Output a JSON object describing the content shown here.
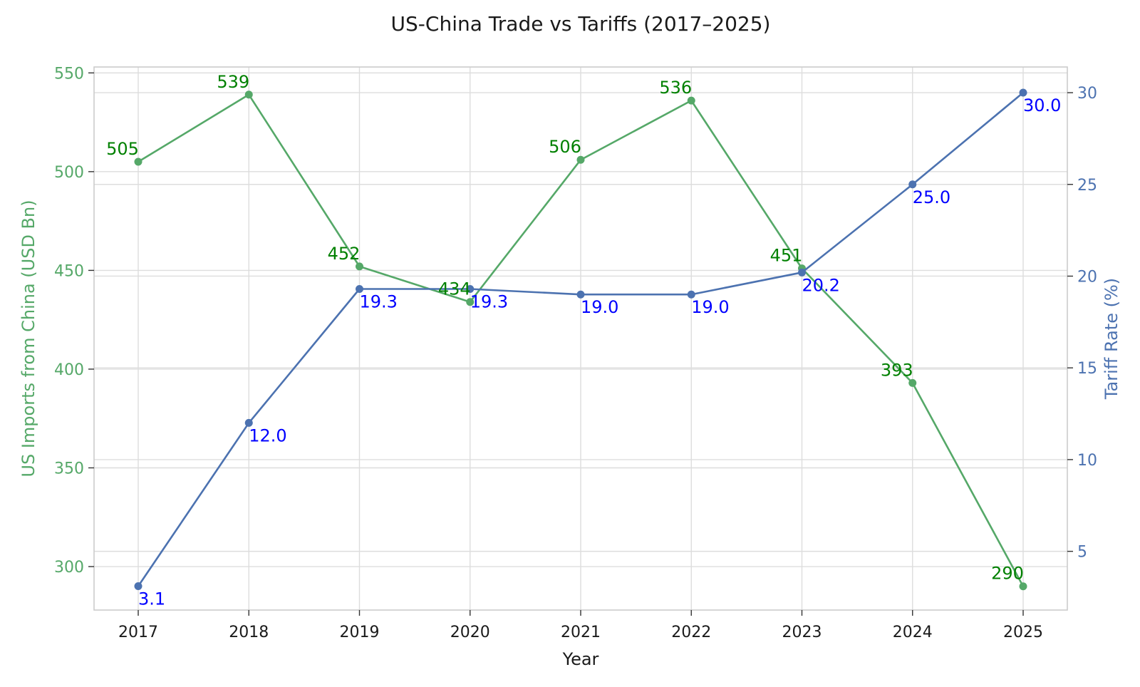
{
  "chart_data": {
    "type": "line",
    "title": "US-China Trade vs Tariffs (2017–2025)",
    "xlabel": "Year",
    "x": [
      "2017",
      "2018",
      "2019",
      "2020",
      "2021",
      "2022",
      "2023",
      "2024",
      "2025"
    ],
    "y_left": {
      "label": "US Imports from China (USD Bn)",
      "ticks": [
        300,
        350,
        400,
        450,
        500,
        550
      ],
      "range": [
        278,
        553
      ],
      "color": "#55a868"
    },
    "y_right": {
      "label": "Tariff Rate (%)",
      "ticks": [
        5,
        10,
        15,
        20,
        25,
        30
      ],
      "range": [
        1.8,
        31.4
      ],
      "color": "#4c72b0"
    },
    "series": [
      {
        "axis": "left",
        "line_color": "#55a868",
        "label_color": "#008000",
        "values": [
          505,
          539,
          452,
          434,
          506,
          536,
          451,
          393,
          290
        ],
        "data_labels": [
          "505",
          "539",
          "452",
          "434",
          "506",
          "536",
          "451",
          "393",
          "290"
        ]
      },
      {
        "axis": "right",
        "line_color": "#4c72b0",
        "label_color": "#0000ff",
        "values": [
          3.1,
          12.0,
          19.3,
          19.3,
          19.0,
          19.0,
          20.2,
          25.0,
          30.0
        ],
        "data_labels": [
          "3.1",
          "12.0",
          "19.3",
          "19.3",
          "19.0",
          "19.0",
          "20.2",
          "25.0",
          "30.0"
        ]
      }
    ],
    "grid": true,
    "legend": "none"
  }
}
